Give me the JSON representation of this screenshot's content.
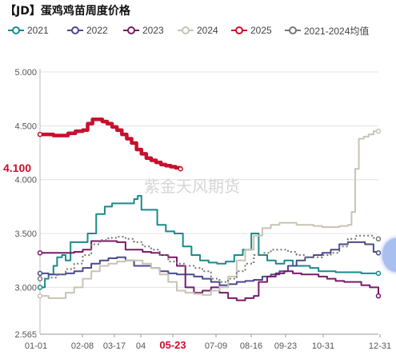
{
  "title": "【JD】蛋鸡鸡苗周度价格",
  "watermark": "紫金天风期货",
  "last_value_label": "4.100",
  "highlight_tick": "05-23",
  "colors": {
    "2021": "#1a8a8a",
    "2022": "#4b4a8c",
    "2023": "#7a1a6a",
    "2024": "#c9c3b5",
    "2025": "#c8102e",
    "avg": "#777777"
  },
  "chart_data": {
    "type": "line",
    "title": "【JD】蛋鸡鸡苗周度价格",
    "xlabel": "",
    "ylabel": "",
    "x_ticks": [
      "01-01",
      "02-08",
      "03-17",
      "04",
      "05-23",
      "07-09",
      "08-16",
      "09-23",
      "10-31",
      "12-31"
    ],
    "y_ticks": [
      2.565,
      3.0,
      3.5,
      4.0,
      4.5,
      5.0
    ],
    "ylim": [
      2.565,
      5.0
    ],
    "legend_position": "top",
    "grid": true,
    "series": [
      {
        "name": "2021",
        "values": [
          [
            1,
            3.0
          ],
          [
            5,
            3.08
          ],
          [
            8,
            3.12
          ],
          [
            12,
            3.2
          ],
          [
            15,
            3.28
          ],
          [
            19,
            3.3
          ],
          [
            22,
            3.25
          ],
          [
            26,
            3.42
          ],
          [
            33,
            3.42
          ],
          [
            40,
            3.5
          ],
          [
            47,
            3.68
          ],
          [
            54,
            3.75
          ],
          [
            60,
            3.78
          ],
          [
            67,
            3.78
          ],
          [
            74,
            3.78
          ],
          [
            78,
            3.82
          ],
          [
            81,
            3.85
          ],
          [
            84,
            3.72
          ],
          [
            90,
            3.72
          ],
          [
            97,
            3.58
          ],
          [
            104,
            3.52
          ],
          [
            111,
            3.5
          ],
          [
            118,
            3.38
          ],
          [
            125,
            3.3
          ],
          [
            132,
            3.25
          ],
          [
            139,
            3.23
          ],
          [
            146,
            3.22
          ],
          [
            153,
            3.24
          ],
          [
            160,
            3.3
          ],
          [
            167,
            3.35
          ],
          [
            174,
            3.5
          ],
          [
            177,
            3.5
          ],
          [
            180,
            3.3
          ],
          [
            187,
            3.25
          ],
          [
            194,
            3.22
          ],
          [
            201,
            3.25
          ],
          [
            208,
            3.2
          ],
          [
            215,
            3.2
          ],
          [
            222,
            3.18
          ],
          [
            229,
            3.15
          ],
          [
            236,
            3.15
          ],
          [
            243,
            3.14
          ],
          [
            250,
            3.14
          ],
          [
            257,
            3.14
          ],
          [
            264,
            3.13
          ],
          [
            271,
            3.13
          ],
          [
            278,
            3.13
          ]
        ]
      },
      {
        "name": "2022",
        "values": [
          [
            1,
            3.13
          ],
          [
            8,
            3.12
          ],
          [
            15,
            3.12
          ],
          [
            22,
            3.13
          ],
          [
            29,
            3.15
          ],
          [
            36,
            3.18
          ],
          [
            43,
            3.22
          ],
          [
            50,
            3.25
          ],
          [
            57,
            3.27
          ],
          [
            64,
            3.28
          ],
          [
            71,
            3.25
          ],
          [
            78,
            3.2
          ],
          [
            85,
            3.2
          ],
          [
            92,
            3.18
          ],
          [
            99,
            3.15
          ],
          [
            106,
            3.13
          ],
          [
            113,
            3.12
          ],
          [
            120,
            3.12
          ],
          [
            127,
            3.1
          ],
          [
            134,
            3.08
          ],
          [
            141,
            3.05
          ],
          [
            148,
            3.02
          ],
          [
            155,
            3.03
          ],
          [
            162,
            3.05
          ],
          [
            169,
            3.06
          ],
          [
            176,
            3.07
          ],
          [
            183,
            3.1
          ],
          [
            190,
            3.12
          ],
          [
            197,
            3.15
          ],
          [
            204,
            3.2
          ],
          [
            211,
            3.25
          ],
          [
            218,
            3.28
          ],
          [
            225,
            3.3
          ],
          [
            232,
            3.32
          ],
          [
            239,
            3.35
          ],
          [
            246,
            3.4
          ],
          [
            253,
            3.42
          ],
          [
            260,
            3.42
          ],
          [
            267,
            3.4
          ],
          [
            274,
            3.33
          ],
          [
            278,
            3.32
          ]
        ]
      },
      {
        "name": "2023",
        "values": [
          [
            1,
            3.32
          ],
          [
            8,
            3.32
          ],
          [
            15,
            3.32
          ],
          [
            22,
            3.32
          ],
          [
            29,
            3.33
          ],
          [
            36,
            3.35
          ],
          [
            43,
            3.43
          ],
          [
            50,
            3.43
          ],
          [
            57,
            3.43
          ],
          [
            64,
            3.42
          ],
          [
            71,
            3.35
          ],
          [
            78,
            3.35
          ],
          [
            85,
            3.33
          ],
          [
            92,
            3.32
          ],
          [
            99,
            3.3
          ],
          [
            106,
            3.28
          ],
          [
            113,
            3.2
          ],
          [
            120,
            3.0
          ],
          [
            127,
            2.95
          ],
          [
            134,
            2.97
          ],
          [
            141,
            3.0
          ],
          [
            148,
            2.95
          ],
          [
            155,
            2.9
          ],
          [
            162,
            2.88
          ],
          [
            169,
            2.9
          ],
          [
            176,
            2.92
          ],
          [
            180,
            3.05
          ],
          [
            187,
            3.1
          ],
          [
            194,
            3.13
          ],
          [
            201,
            3.15
          ],
          [
            208,
            3.13
          ],
          [
            215,
            3.12
          ],
          [
            222,
            3.12
          ],
          [
            229,
            3.1
          ],
          [
            236,
            3.08
          ],
          [
            243,
            3.06
          ],
          [
            250,
            3.05
          ],
          [
            257,
            3.05
          ],
          [
            264,
            3.02
          ],
          [
            271,
            3.0
          ],
          [
            278,
            2.92
          ]
        ]
      },
      {
        "name": "2024",
        "values": [
          [
            1,
            2.92
          ],
          [
            8,
            2.9
          ],
          [
            15,
            2.9
          ],
          [
            22,
            2.95
          ],
          [
            29,
            3.0
          ],
          [
            36,
            3.08
          ],
          [
            43,
            3.15
          ],
          [
            50,
            3.2
          ],
          [
            57,
            3.22
          ],
          [
            64,
            3.24
          ],
          [
            71,
            3.25
          ],
          [
            78,
            3.25
          ],
          [
            85,
            3.22
          ],
          [
            92,
            3.18
          ],
          [
            99,
            3.12
          ],
          [
            106,
            3.05
          ],
          [
            113,
            2.97
          ],
          [
            120,
            2.95
          ],
          [
            127,
            2.94
          ],
          [
            134,
            2.93
          ],
          [
            141,
            2.97
          ],
          [
            148,
            3.0
          ],
          [
            155,
            3.1
          ],
          [
            162,
            3.25
          ],
          [
            169,
            3.35
          ],
          [
            176,
            3.48
          ],
          [
            183,
            3.55
          ],
          [
            190,
            3.58
          ],
          [
            197,
            3.6
          ],
          [
            204,
            3.6
          ],
          [
            211,
            3.58
          ],
          [
            218,
            3.58
          ],
          [
            225,
            3.57
          ],
          [
            232,
            3.56
          ],
          [
            239,
            3.56
          ],
          [
            246,
            3.57
          ],
          [
            253,
            3.58
          ],
          [
            256,
            3.7
          ],
          [
            259,
            4.1
          ],
          [
            262,
            4.38
          ],
          [
            266,
            4.4
          ],
          [
            270,
            4.42
          ],
          [
            274,
            4.45
          ],
          [
            278,
            4.45
          ]
        ]
      },
      {
        "name": "2025",
        "values": [
          [
            1,
            4.42
          ],
          [
            6,
            4.42
          ],
          [
            12,
            4.41
          ],
          [
            18,
            4.41
          ],
          [
            24,
            4.43
          ],
          [
            30,
            4.45
          ],
          [
            36,
            4.46
          ],
          [
            40,
            4.52
          ],
          [
            44,
            4.56
          ],
          [
            48,
            4.56
          ],
          [
            52,
            4.54
          ],
          [
            56,
            4.52
          ],
          [
            60,
            4.49
          ],
          [
            64,
            4.46
          ],
          [
            68,
            4.42
          ],
          [
            72,
            4.38
          ],
          [
            76,
            4.34
          ],
          [
            80,
            4.28
          ],
          [
            84,
            4.24
          ],
          [
            88,
            4.2
          ],
          [
            92,
            4.18
          ],
          [
            96,
            4.16
          ],
          [
            100,
            4.14
          ],
          [
            104,
            4.13
          ],
          [
            108,
            4.12
          ],
          [
            112,
            4.11
          ],
          [
            116,
            4.1
          ]
        ]
      },
      {
        "name": "2021-2024均值",
        "values": [
          [
            1,
            3.08
          ],
          [
            8,
            3.09
          ],
          [
            15,
            3.12
          ],
          [
            22,
            3.17
          ],
          [
            29,
            3.22
          ],
          [
            36,
            3.3
          ],
          [
            43,
            3.4
          ],
          [
            50,
            3.44
          ],
          [
            57,
            3.46
          ],
          [
            64,
            3.47
          ],
          [
            71,
            3.45
          ],
          [
            78,
            3.42
          ],
          [
            85,
            3.38
          ],
          [
            92,
            3.35
          ],
          [
            99,
            3.3
          ],
          [
            106,
            3.24
          ],
          [
            113,
            3.22
          ],
          [
            120,
            3.2
          ],
          [
            127,
            3.18
          ],
          [
            134,
            3.15
          ],
          [
            141,
            3.08
          ],
          [
            148,
            3.05
          ],
          [
            155,
            3.08
          ],
          [
            162,
            3.15
          ],
          [
            169,
            3.22
          ],
          [
            176,
            3.3
          ],
          [
            183,
            3.32
          ],
          [
            190,
            3.35
          ],
          [
            197,
            3.35
          ],
          [
            204,
            3.33
          ],
          [
            211,
            3.3
          ],
          [
            218,
            3.28
          ],
          [
            225,
            3.28
          ],
          [
            232,
            3.3
          ],
          [
            239,
            3.32
          ],
          [
            246,
            3.38
          ],
          [
            253,
            3.45
          ],
          [
            260,
            3.48
          ],
          [
            267,
            3.48
          ],
          [
            274,
            3.46
          ],
          [
            278,
            3.45
          ]
        ]
      }
    ]
  }
}
